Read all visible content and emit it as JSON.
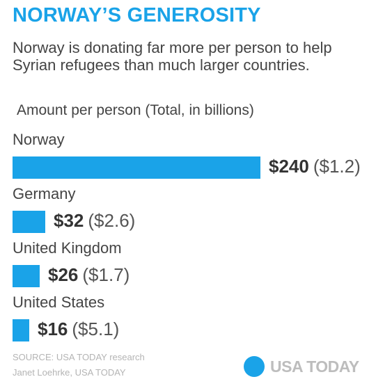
{
  "title": "NORWAY’S GENEROSITY",
  "subtitle": "Norway is donating far more per person to help Syrian refugees than much larger countries.",
  "measure_label": "Amount per person (Total, in billions)",
  "chart_data": {
    "type": "bar",
    "orientation": "horizontal",
    "categories": [
      "Norway",
      "Germany",
      "United Kingdom",
      "United States"
    ],
    "values": [
      240,
      32,
      26,
      16
    ],
    "value_labels": [
      "$240",
      "$32",
      "$26",
      "$16"
    ],
    "totals": [
      1.2,
      2.6,
      1.7,
      5.1
    ],
    "total_labels": [
      "($1.2)",
      "($2.6)",
      "($1.7)",
      "($5.1)"
    ],
    "title": "NORWAY’S GENEROSITY",
    "xlabel": "Amount per person (Total, in billions)",
    "ylabel": "",
    "bar_color": "#1aa3e8"
  },
  "source": {
    "line1": "SOURCE:  USA TODAY research",
    "line2": "Janet Loehrke, USA TODAY"
  },
  "logo": {
    "text": "USA TODAY",
    "color": "#1aa3e8"
  }
}
